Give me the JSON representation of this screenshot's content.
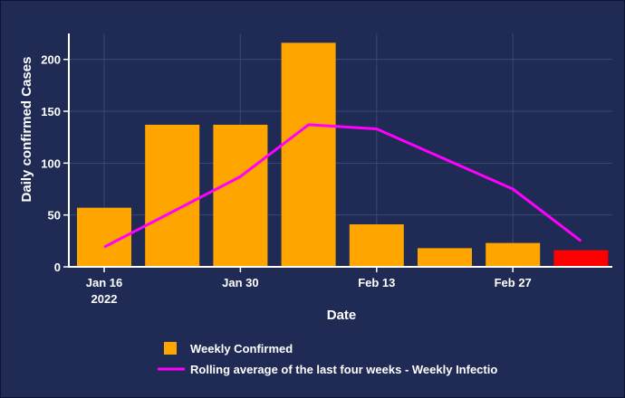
{
  "chart_data": {
    "type": "bar",
    "xlabel": "Date",
    "ylabel": "Daily confirmed Cases",
    "ylim": [
      0,
      225
    ],
    "yticks": [
      0,
      50,
      100,
      150,
      200
    ],
    "xticks": [
      {
        "label": "Jan 16",
        "sublabel": "2022",
        "date": "2022-01-16"
      },
      {
        "label": "Jan 30",
        "sublabel": "",
        "date": "2022-01-30"
      },
      {
        "label": "Feb 13",
        "sublabel": "",
        "date": "2022-02-13"
      },
      {
        "label": "Feb 27",
        "sublabel": "",
        "date": "2022-02-27"
      }
    ],
    "bars": {
      "name": "Weekly Confirmed",
      "color": "#ffa500",
      "points": [
        {
          "date": "2022-01-16",
          "value": 57,
          "color": "#ffa500"
        },
        {
          "date": "2022-01-23",
          "value": 137,
          "color": "#ffa500"
        },
        {
          "date": "2022-01-30",
          "value": 137,
          "color": "#ffa500"
        },
        {
          "date": "2022-02-06",
          "value": 216,
          "color": "#ffa500"
        },
        {
          "date": "2022-02-13",
          "value": 41,
          "color": "#ffa500"
        },
        {
          "date": "2022-02-20",
          "value": 18,
          "color": "#ffa500"
        },
        {
          "date": "2022-02-27",
          "value": 23,
          "color": "#ffa500"
        },
        {
          "date": "2022-03-06",
          "value": 16,
          "color": "#ff0000"
        }
      ]
    },
    "line": {
      "name": "Rolling average of the last four weeks - Weekly Infectio",
      "color": "#ff00ff",
      "points": [
        {
          "date": "2022-01-16",
          "value": 19
        },
        {
          "date": "2022-01-30",
          "value": 87
        },
        {
          "date": "2022-02-06",
          "value": 137
        },
        {
          "date": "2022-02-13",
          "value": 133
        },
        {
          "date": "2022-02-27",
          "value": 75
        },
        {
          "date": "2022-03-06",
          "value": 25
        }
      ]
    },
    "grid": true,
    "legend_position": "bottom"
  }
}
